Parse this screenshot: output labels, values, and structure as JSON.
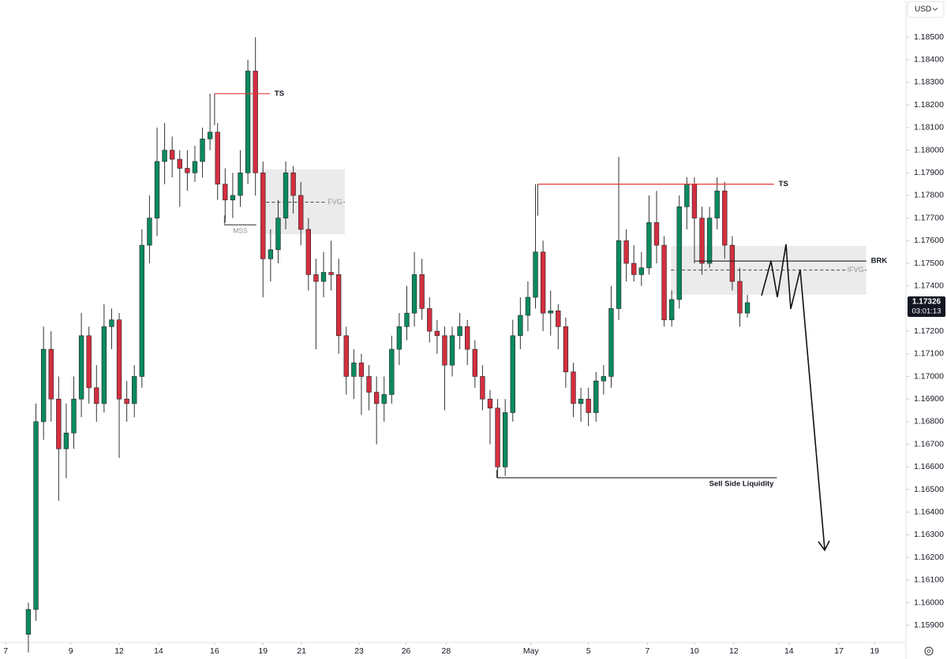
{
  "chart_data": {
    "type": "candlestick",
    "currency": "USD",
    "up_color": "#0b8a5f",
    "down_color": "#d32f40",
    "grid": false,
    "xlim": [
      -3.75,
      115.95
    ],
    "ylim": [
      1.15824,
      1.18664
    ],
    "xticks": [
      {
        "value": -3,
        "label": "7"
      },
      {
        "value": 5.6,
        "label": "9"
      },
      {
        "value": 12,
        "label": "12"
      },
      {
        "value": 17.2,
        "label": "14"
      },
      {
        "value": 24.6,
        "label": "16"
      },
      {
        "value": 31,
        "label": "19"
      },
      {
        "value": 36.1,
        "label": "21"
      },
      {
        "value": 43.7,
        "label": "23"
      },
      {
        "value": 49.9,
        "label": "26"
      },
      {
        "value": 55.2,
        "label": "28"
      },
      {
        "value": 66.4,
        "label": "May"
      },
      {
        "value": 74,
        "label": "5"
      },
      {
        "value": 81.8,
        "label": "7"
      },
      {
        "value": 88,
        "label": "10"
      },
      {
        "value": 93.2,
        "label": "12"
      },
      {
        "value": 100.5,
        "label": "14"
      },
      {
        "value": 107.1,
        "label": "17"
      },
      {
        "value": 111.8,
        "label": "19"
      }
    ],
    "yticks": [
      {
        "value": 1.185,
        "label": "1.18500"
      },
      {
        "value": 1.184,
        "label": "1.18400"
      },
      {
        "value": 1.183,
        "label": "1.18300"
      },
      {
        "value": 1.182,
        "label": "1.18200"
      },
      {
        "value": 1.181,
        "label": "1.18100"
      },
      {
        "value": 1.18,
        "label": "1.18000"
      },
      {
        "value": 1.179,
        "label": "1.17900"
      },
      {
        "value": 1.178,
        "label": "1.17800"
      },
      {
        "value": 1.177,
        "label": "1.17700"
      },
      {
        "value": 1.176,
        "label": "1.17600"
      },
      {
        "value": 1.175,
        "label": "1.17500"
      },
      {
        "value": 1.174,
        "label": "1.17400"
      },
      {
        "value": 1.173,
        "label": "1.17300"
      },
      {
        "value": 1.172,
        "label": "1.17200"
      },
      {
        "value": 1.171,
        "label": "1.17100"
      },
      {
        "value": 1.17,
        "label": "1.17000"
      },
      {
        "value": 1.169,
        "label": "1.16900"
      },
      {
        "value": 1.168,
        "label": "1.16800"
      },
      {
        "value": 1.167,
        "label": "1.16700"
      },
      {
        "value": 1.166,
        "label": "1.16600"
      },
      {
        "value": 1.165,
        "label": "1.16500"
      },
      {
        "value": 1.164,
        "label": "1.16400"
      },
      {
        "value": 1.163,
        "label": "1.16300"
      },
      {
        "value": 1.162,
        "label": "1.16200"
      },
      {
        "value": 1.161,
        "label": "1.16100"
      },
      {
        "value": 1.16,
        "label": "1.16000"
      },
      {
        "value": 1.159,
        "label": "1.15900"
      }
    ],
    "candles": [
      [
        1.1586,
        1.16,
        1.1578,
        1.1597
      ],
      [
        1.1597,
        1.1688,
        1.1592,
        1.168
      ],
      [
        1.168,
        1.1722,
        1.1672,
        1.1712
      ],
      [
        1.1712,
        1.172,
        1.168,
        1.169
      ],
      [
        1.169,
        1.17,
        1.1645,
        1.1668
      ],
      [
        1.1668,
        1.1688,
        1.1655,
        1.1675
      ],
      [
        1.1675,
        1.17,
        1.1668,
        1.169
      ],
      [
        1.169,
        1.1728,
        1.1682,
        1.1718
      ],
      [
        1.1718,
        1.1722,
        1.1688,
        1.1695
      ],
      [
        1.1695,
        1.1705,
        1.168,
        1.1688
      ],
      [
        1.1688,
        1.1732,
        1.1684,
        1.1722
      ],
      [
        1.1722,
        1.173,
        1.1712,
        1.1725
      ],
      [
        1.1725,
        1.1728,
        1.1664,
        1.169
      ],
      [
        1.169,
        1.1698,
        1.168,
        1.1688
      ],
      [
        1.1688,
        1.1705,
        1.1682,
        1.17
      ],
      [
        1.17,
        1.1765,
        1.1695,
        1.1758
      ],
      [
        1.1758,
        1.178,
        1.175,
        1.177
      ],
      [
        1.177,
        1.181,
        1.1762,
        1.1795
      ],
      [
        1.1795,
        1.1812,
        1.1785,
        1.18
      ],
      [
        1.18,
        1.1806,
        1.1788,
        1.1796
      ],
      [
        1.1796,
        1.18,
        1.1775,
        1.1792
      ],
      [
        1.1792,
        1.18,
        1.1782,
        1.179
      ],
      [
        1.179,
        1.1802,
        1.1786,
        1.1795
      ],
      [
        1.1795,
        1.181,
        1.1788,
        1.1805
      ],
      [
        1.1805,
        1.1825,
        1.18,
        1.1808
      ],
      [
        1.1808,
        1.1812,
        1.1778,
        1.1785
      ],
      [
        1.1785,
        1.1792,
        1.1768,
        1.1778
      ],
      [
        1.1778,
        1.179,
        1.177,
        1.178
      ],
      [
        1.178,
        1.18,
        1.1775,
        1.179
      ],
      [
        1.179,
        1.184,
        1.1785,
        1.1835
      ],
      [
        1.1835,
        1.185,
        1.178,
        1.179
      ],
      [
        1.179,
        1.1795,
        1.1735,
        1.1752
      ],
      [
        1.1752,
        1.1765,
        1.1742,
        1.1756
      ],
      [
        1.1756,
        1.1778,
        1.175,
        1.177
      ],
      [
        1.177,
        1.1795,
        1.1765,
        1.179
      ],
      [
        1.179,
        1.1793,
        1.1772,
        1.178
      ],
      [
        1.178,
        1.1786,
        1.1758,
        1.1765
      ],
      [
        1.1765,
        1.177,
        1.1738,
        1.1745
      ],
      [
        1.1745,
        1.1752,
        1.1712,
        1.1742
      ],
      [
        1.1742,
        1.1755,
        1.1735,
        1.1746
      ],
      [
        1.1746,
        1.176,
        1.1738,
        1.1745
      ],
      [
        1.1745,
        1.1752,
        1.171,
        1.1718
      ],
      [
        1.1718,
        1.1722,
        1.1692,
        1.17
      ],
      [
        1.17,
        1.1712,
        1.169,
        1.1706
      ],
      [
        1.1706,
        1.171,
        1.1683,
        1.17
      ],
      [
        1.17,
        1.1705,
        1.1685,
        1.1693
      ],
      [
        1.1693,
        1.17,
        1.167,
        1.1688
      ],
      [
        1.1688,
        1.17,
        1.168,
        1.1692
      ],
      [
        1.1692,
        1.1718,
        1.1688,
        1.1712
      ],
      [
        1.1712,
        1.1728,
        1.1705,
        1.1722
      ],
      [
        1.1722,
        1.174,
        1.1716,
        1.1728
      ],
      [
        1.1728,
        1.1755,
        1.1722,
        1.1745
      ],
      [
        1.1745,
        1.1752,
        1.1725,
        1.173
      ],
      [
        1.173,
        1.1735,
        1.1715,
        1.172
      ],
      [
        1.172,
        1.1725,
        1.171,
        1.1718
      ],
      [
        1.1718,
        1.1722,
        1.1685,
        1.1705
      ],
      [
        1.1705,
        1.1722,
        1.17,
        1.1718
      ],
      [
        1.1718,
        1.1728,
        1.1712,
        1.1722
      ],
      [
        1.1722,
        1.1725,
        1.1705,
        1.1712
      ],
      [
        1.1712,
        1.1716,
        1.1695,
        1.17
      ],
      [
        1.17,
        1.1705,
        1.1685,
        1.169
      ],
      [
        1.169,
        1.1694,
        1.167,
        1.1686
      ],
      [
        1.1686,
        1.169,
        1.1655,
        1.166
      ],
      [
        1.166,
        1.169,
        1.1656,
        1.1684
      ],
      [
        1.1684,
        1.1725,
        1.168,
        1.1718
      ],
      [
        1.1718,
        1.1735,
        1.1712,
        1.1727
      ],
      [
        1.1727,
        1.1742,
        1.172,
        1.1735
      ],
      [
        1.1735,
        1.1785,
        1.173,
        1.1755
      ],
      [
        1.1755,
        1.176,
        1.172,
        1.1728
      ],
      [
        1.1728,
        1.1738,
        1.1718,
        1.1729
      ],
      [
        1.1729,
        1.1732,
        1.1712,
        1.1722
      ],
      [
        1.1722,
        1.1726,
        1.1695,
        1.1702
      ],
      [
        1.1702,
        1.1706,
        1.1682,
        1.1688
      ],
      [
        1.1688,
        1.1695,
        1.168,
        1.169
      ],
      [
        1.169,
        1.1695,
        1.1678,
        1.1684
      ],
      [
        1.1684,
        1.1702,
        1.168,
        1.1698
      ],
      [
        1.1698,
        1.1705,
        1.1692,
        1.17
      ],
      [
        1.17,
        1.174,
        1.1695,
        1.173
      ],
      [
        1.173,
        1.1797,
        1.1725,
        1.176
      ],
      [
        1.176,
        1.1765,
        1.1742,
        1.175
      ],
      [
        1.175,
        1.1758,
        1.1742,
        1.1745
      ],
      [
        1.1745,
        1.1755,
        1.174,
        1.1748
      ],
      [
        1.1748,
        1.178,
        1.1745,
        1.1768
      ],
      [
        1.1768,
        1.1782,
        1.175,
        1.1758
      ],
      [
        1.1758,
        1.1762,
        1.1722,
        1.1725
      ],
      [
        1.1725,
        1.1738,
        1.1722,
        1.1734
      ],
      [
        1.1734,
        1.178,
        1.173,
        1.1775
      ],
      [
        1.1775,
        1.1788,
        1.1765,
        1.1785
      ],
      [
        1.1785,
        1.1788,
        1.175,
        1.177
      ],
      [
        1.177,
        1.1775,
        1.1745,
        1.175
      ],
      [
        1.175,
        1.1775,
        1.1748,
        1.177
      ],
      [
        1.177,
        1.1788,
        1.1765,
        1.1782
      ],
      [
        1.1782,
        1.1786,
        1.1752,
        1.1758
      ],
      [
        1.1758,
        1.1762,
        1.1738,
        1.1742
      ],
      [
        1.1742,
        1.1748,
        1.1722,
        1.1728
      ],
      [
        1.1728,
        1.1736,
        1.1726,
        1.17326
      ]
    ],
    "last_price": 1.17326,
    "countdown": "03:01:13",
    "levels": [
      {
        "label": "TS",
        "y": 1.1825,
        "x0": 24.6,
        "x1": 31.9,
        "color": "#e53935"
      },
      {
        "label": "TS",
        "y": 1.1785,
        "x0": 67.3,
        "x1": 98.5,
        "color": "#e53935"
      },
      {
        "label": "BRK",
        "y": 1.1751,
        "x0": 88.0,
        "x1": 110.7,
        "color": "#222222"
      },
      {
        "label": "Sell Side Liquidity",
        "y": 1.16552,
        "x0": 61.9,
        "x1": 98.9,
        "color": "#222222"
      },
      {
        "label": "MSS",
        "y": 1.1767,
        "x0": 25.9,
        "x1": 30.1,
        "color": "#555555"
      }
    ],
    "zones": [
      {
        "label": "FVG",
        "y0": 1.17915,
        "y1": 1.17629,
        "mid": 1.1777,
        "x0": 30.7,
        "x1": 41.8
      },
      {
        "label": "IFVG",
        "y0": 1.17577,
        "y1": 1.17361,
        "mid": 1.1747,
        "x0": 84.9,
        "x1": 110.7
      }
    ]
  }
}
